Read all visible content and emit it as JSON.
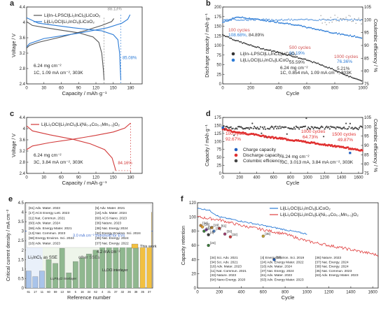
{
  "chart_data": [
    {
      "panel": "a",
      "type": "line",
      "xlabel": "Capacity / mAh·g⁻¹",
      "ylabel": "Voltage / V",
      "xlim": [
        0,
        200
      ],
      "ylim": [
        2.4,
        4.4
      ],
      "xticks": [
        0,
        30,
        60,
        90,
        120,
        150,
        180
      ],
      "yticks": [
        2.4,
        2.8,
        3.2,
        3.6,
        4.0,
        4.4
      ],
      "legend": [
        "Li|In–LPSCl|Li₃InCl₆|LiCoO₂",
        "Li|Li₃OCl|Li₃InCl₆|LiCoO₂"
      ],
      "annotations": [
        "88.13%",
        "85.08%",
        "6.24 mg cm⁻²",
        "1C, 1.09 mA cm⁻², 303K"
      ],
      "series": [
        {
          "name": "Li|In–LPSCl|Li₃InCl₆|LiCoO₂",
          "color": "#555555",
          "charge": [
            [
              0,
              3.33
            ],
            [
              5,
              3.4
            ],
            [
              20,
              3.48
            ],
            [
              60,
              3.62
            ],
            [
              100,
              3.78
            ],
            [
              130,
              3.92
            ],
            [
              147,
              4.02
            ],
            [
              151,
              4.1
            ]
          ],
          "discharge": [
            [
              0,
              4.02
            ],
            [
              10,
              3.92
            ],
            [
              50,
              3.82
            ],
            [
              90,
              3.73
            ],
            [
              115,
              3.62
            ],
            [
              125,
              3.48
            ],
            [
              130,
              3.2
            ],
            [
              133,
              2.75
            ],
            [
              134,
              2.5
            ]
          ]
        },
        {
          "name": "Li|Li₃OCl|Li₃InCl₆|LiCoO₂",
          "color": "#2b7bd6",
          "charge": [
            [
              0,
              3.36
            ],
            [
              5,
              3.45
            ],
            [
              30,
              3.58
            ],
            [
              90,
              3.72
            ],
            [
              140,
              3.86
            ],
            [
              165,
              3.98
            ],
            [
              175,
              4.08
            ],
            [
              179,
              4.2
            ]
          ],
          "discharge": [
            [
              0,
              4.12
            ],
            [
              20,
              3.98
            ],
            [
              80,
              3.86
            ],
            [
              130,
              3.78
            ],
            [
              150,
              3.68
            ],
            [
              158,
              3.55
            ],
            [
              161,
              3.2
            ],
            [
              162,
              2.8
            ],
            [
              163,
              2.5
            ]
          ]
        }
      ]
    },
    {
      "panel": "b",
      "type": "scatter",
      "xlabel": "Cycle",
      "ylabel": "Discharge capacity / mAh·g⁻¹",
      "y2label": "Coulombic efficiency / %",
      "xlim": [
        0,
        1000
      ],
      "ylim": [
        0,
        200
      ],
      "y2lim": [
        75,
        105
      ],
      "xticks": [
        0,
        200,
        400,
        600,
        800,
        1000
      ],
      "yticks": [
        0,
        25,
        50,
        75,
        100,
        125,
        150,
        175,
        200
      ],
      "y2ticks": [
        75,
        80,
        85,
        90,
        95,
        100,
        105
      ],
      "legend": [
        "Li|In–LPSCl|Li₃InCl₆|LiCoO₂",
        "Li|Li₃OCl|Li₃InCl₆|LiCoO₂"
      ],
      "annotations": [
        "100 cycles",
        "108.68%,",
        "84.89%",
        "500 cycles",
        "91.19%",
        "55.59%",
        "1000 cycles",
        "76.36%",
        "5.21%",
        "6.24 mg cm⁻²",
        "1C, 0.854 mA, 1.09 mA cm⁻², 303K"
      ],
      "series": [
        {
          "name": "Li|In–LPSCl|Li₃InCl₆|LiCoO₂",
          "color": "#333333",
          "capacity": [
            [
              1,
              128
            ],
            [
              100,
              112
            ],
            [
              200,
              100
            ],
            [
              300,
              90
            ],
            [
              400,
              82
            ],
            [
              500,
              72
            ],
            [
              600,
              62
            ],
            [
              700,
              50
            ],
            [
              800,
              36
            ],
            [
              900,
              20
            ],
            [
              1000,
              7
            ]
          ]
        },
        {
          "name": "Li|Li₃OCl|Li₃InCl₆|LiCoO₂",
          "color": "#2b7bd6",
          "capacity": [
            [
              1,
              160
            ],
            [
              60,
              168
            ],
            [
              100,
              174
            ],
            [
              200,
              170
            ],
            [
              300,
              165
            ],
            [
              400,
              160
            ],
            [
              500,
              155
            ],
            [
              600,
              147
            ],
            [
              700,
              140
            ],
            [
              800,
              132
            ],
            [
              900,
              126
            ],
            [
              1000,
              120
            ]
          ],
          "efficiency": [
            [
              1,
              99.5
            ],
            [
              200,
              100
            ],
            [
              500,
              100
            ],
            [
              1000,
              100
            ]
          ]
        }
      ]
    },
    {
      "panel": "c",
      "type": "line",
      "xlabel": "Capacity / mAh·g⁻¹",
      "ylabel": "Voltage / V",
      "xlim": [
        0,
        200
      ],
      "ylim": [
        2.4,
        4.4
      ],
      "xticks": [
        0,
        30,
        60,
        90,
        120,
        150,
        180
      ],
      "yticks": [
        2.4,
        2.8,
        3.2,
        3.6,
        4.0,
        4.4
      ],
      "legend": [
        "Li|Li₃OCl|Li₃InCl₆|Li(Ni₀.₈Co₀.₁Mn₀.₁)O₂"
      ],
      "annotations": [
        "84.16%",
        "6.24 mg cm⁻²",
        "3C, 3.84 mA cm⁻², 303K"
      ],
      "series": [
        {
          "name": "Li|Li₃OCl|Li₃InCl₆|Li(Ni₀.₈Co₀.₁Mn₀.₁)O₂",
          "color": "#d23a3a",
          "charge": [
            [
              0,
              3.25
            ],
            [
              10,
              3.38
            ],
            [
              40,
              3.5
            ],
            [
              80,
              3.62
            ],
            [
              120,
              3.76
            ],
            [
              150,
              3.88
            ],
            [
              170,
              4.02
            ],
            [
              180,
              4.2
            ]
          ],
          "discharge": [
            [
              0,
              4.1
            ],
            [
              10,
              3.92
            ],
            [
              40,
              3.78
            ],
            [
              80,
              3.62
            ],
            [
              110,
              3.46
            ],
            [
              135,
              3.25
            ],
            [
              148,
              2.95
            ],
            [
              153,
              2.6
            ],
            [
              154,
              2.5
            ]
          ]
        }
      ]
    },
    {
      "panel": "d",
      "type": "scatter",
      "xlabel": "Cycle",
      "ylabel": "Capacity / mAh·g⁻¹",
      "y2label": "Coulombic efficiency / %",
      "xlim": [
        0,
        1650
      ],
      "ylim": [
        0,
        175
      ],
      "y2lim": [
        75,
        105
      ],
      "xticks": [
        0,
        200,
        400,
        600,
        800,
        1000,
        1200,
        1400,
        1600
      ],
      "yticks": [
        0,
        25,
        50,
        75,
        100,
        125,
        150,
        175
      ],
      "y2ticks": [
        75,
        80,
        85,
        90,
        95,
        100,
        105
      ],
      "legend": [
        "Charge capacity",
        "Discharge capacity",
        "Columbic efficiency"
      ],
      "annotations": [
        "100 cycles",
        "92.67%",
        "1000 cycles",
        "64.73%",
        "1500 cycles",
        "49.87%",
        "6.24 mg cm⁻²",
        "3C, 3.013 mA, 3.84 mA cm⁻², 303K"
      ],
      "series": [
        {
          "name": "Charge capacity",
          "color": "#2060c0",
          "values": [
            [
              1,
              143
            ],
            [
              1500,
              64
            ]
          ]
        },
        {
          "name": "Discharge capacity",
          "color": "#e03030",
          "values": [
            [
              1,
              140
            ],
            [
              100,
              132
            ],
            [
              200,
              128
            ],
            [
              400,
              120
            ],
            [
              600,
              112
            ],
            [
              800,
              105
            ],
            [
              1000,
              98
            ],
            [
              1200,
              90
            ],
            [
              1400,
              82
            ],
            [
              1600,
              74
            ],
            [
              1650,
              70
            ]
          ]
        },
        {
          "name": "Columbic efficiency",
          "color": "#444444",
          "values": [
            [
              1,
              99.5
            ],
            [
              1650,
              99.5
            ]
          ]
        }
      ]
    },
    {
      "panel": "e",
      "type": "bar",
      "xlabel": "Reference number",
      "ylabel": "Critical current density / mA cm⁻²",
      "ylim": [
        0,
        4.5
      ],
      "yticks": [
        0,
        0.5,
        1.0,
        1.5,
        2.0,
        2.5,
        3.0,
        3.5,
        4.0,
        4.5
      ],
      "categories": [
        "61",
        "17",
        "11",
        "60",
        "59",
        "13",
        "58",
        "5",
        "16",
        "34",
        "62",
        "4",
        "31",
        "37",
        "32",
        "36",
        "38",
        "35",
        "37"
      ],
      "values": [
        0.9,
        0.6,
        0.9,
        1.5,
        1.3,
        2.1,
        0.8,
        1.4,
        1.6,
        1.8,
        2.0,
        2.2,
        2.4,
        2.6,
        2.9,
        3.2,
        3.5,
        3.8,
        4.0
      ],
      "annotations": [
        "4.2 mA cm⁻²",
        "This work",
        "Li₃InCl₆ as SSE",
        "other SSEs",
        "3.0 mA cm⁻² threshold for EVs",
        "Li₃OCl interlayer",
        "Li₆PS₅Cl interlayer"
      ],
      "references_left": [
        "[61] Adv. Mater. 2023",
        "[17] ACS Energy Lett. 2023",
        "[11] Nat. Commun. 2021",
        "[60] Adv. Mater. 2024",
        "[59] Adv. Energy Mater. 2021",
        "[13] Nat. Commun. 2023",
        "[58] Energy Environ. Sci. 2024",
        "[16] Adv. Mater. 2023"
      ],
      "references_right": [
        "[5] Adv. Mater. 2021",
        "[16] Adv. Mater. 2024",
        "[60] ACS Nano. 2023",
        "[36] Nature. 2023",
        "[38] Nat. Energy 2024",
        "[32] Energy Environ. Sci. 2024",
        "[36] Nat. Energy. 2024",
        "[37] Nat. Energy. 2022"
      ]
    },
    {
      "panel": "f",
      "type": "line",
      "xlabel": "Cycle",
      "ylabel": "Capacity retention",
      "xlim": [
        0,
        1650
      ],
      "ylim": [
        0,
        120
      ],
      "xticks": [
        0,
        200,
        400,
        600,
        800,
        1000,
        1200,
        1400,
        1600
      ],
      "yticks": [
        0,
        20,
        40,
        60,
        80,
        100,
        120
      ],
      "legend": [
        "Li|Li₃OCl|Li₃InCl₆|LiCoO₂",
        "Li|Li₃OCl|Li₃InCl₆|Li(Ni₀.₈Co₀.₁Mn₀.₁)O₂"
      ],
      "references": [
        [
          "[34] Sci. Adv. 2021",
          "[34] Sci. Adv. 2021",
          "[16] Adv. Mater. 2023",
          "[11] Nat. Commun. 2021",
          "[33] Nature. 2023",
          "[64] Nano Energy. 2020"
        ],
        [
          "[4] Energy Environ. Sci. 2019",
          "[24] Adv. Energy Mater. 2022",
          "[16] Adv. Mater. 2024",
          "[37] Nat. Energy. 2024",
          "[61] Adv. Mater. 2023",
          "[63] Adv. Energy Mater. 2023"
        ],
        [
          "[36] Nature. 2023",
          "[37] Nat. Energy. 2024",
          "[38] Nat. Energy. 2024",
          "[35] Nat. Commun. 2023",
          "[63] Adv. Energy Mater. 2023"
        ]
      ],
      "series": [
        {
          "name": "Li|Li₃OCl|Li₃InCl₆|LiCoO₂",
          "color": "#2b7bd6",
          "values": [
            [
              0,
              112
            ],
            [
              100,
              110
            ],
            [
              200,
              100
            ],
            [
              400,
              94
            ],
            [
              600,
              88
            ],
            [
              800,
              82
            ],
            [
              1000,
              76
            ]
          ]
        },
        {
          "name": "Li|Li₃OCl|Li₃InCl₆|Li(Ni₀.₈Co₀.₁Mn₀.₁)O₂",
          "color": "#e04040",
          "values": [
            [
              0,
              100
            ],
            [
              200,
              96
            ],
            [
              400,
              88
            ],
            [
              600,
              82
            ],
            [
              800,
              76
            ],
            [
              1000,
              66
            ],
            [
              1200,
              60
            ],
            [
              1400,
              54
            ],
            [
              1600,
              48
            ],
            [
              1650,
              46
            ]
          ]
        }
      ],
      "points": [
        {
          "label": "[34]",
          "x": 30,
          "y": 88,
          "color": "#c08030"
        },
        {
          "label": "[16]",
          "x": 45,
          "y": 86,
          "color": "#e0a030"
        },
        {
          "label": "[11]",
          "x": 60,
          "y": 80,
          "color": "#3a7a3a"
        },
        {
          "label": "[33]",
          "x": 80,
          "y": 82,
          "color": "#8040a0"
        },
        {
          "label": "[4]",
          "x": 100,
          "y": 75,
          "color": "#404040"
        },
        {
          "label": "[24]",
          "x": 100,
          "y": 60,
          "color": "#3a7a3a"
        },
        {
          "label": "[16]",
          "x": 130,
          "y": 85,
          "color": "#e0a030"
        },
        {
          "label": "[37]",
          "x": 150,
          "y": 80,
          "color": "#5080c0"
        },
        {
          "label": "[61]",
          "x": 200,
          "y": 84,
          "color": "#d04040"
        },
        {
          "label": "[36]",
          "x": 250,
          "y": 76,
          "color": "#a04070"
        },
        {
          "label": "[32]",
          "x": 300,
          "y": 72,
          "color": "#d04040"
        },
        {
          "label": "[35]",
          "x": 600,
          "y": 73,
          "color": "#c0a030"
        },
        {
          "label": "[63]",
          "x": 700,
          "y": 40,
          "color": "#2060c0"
        }
      ]
    }
  ]
}
